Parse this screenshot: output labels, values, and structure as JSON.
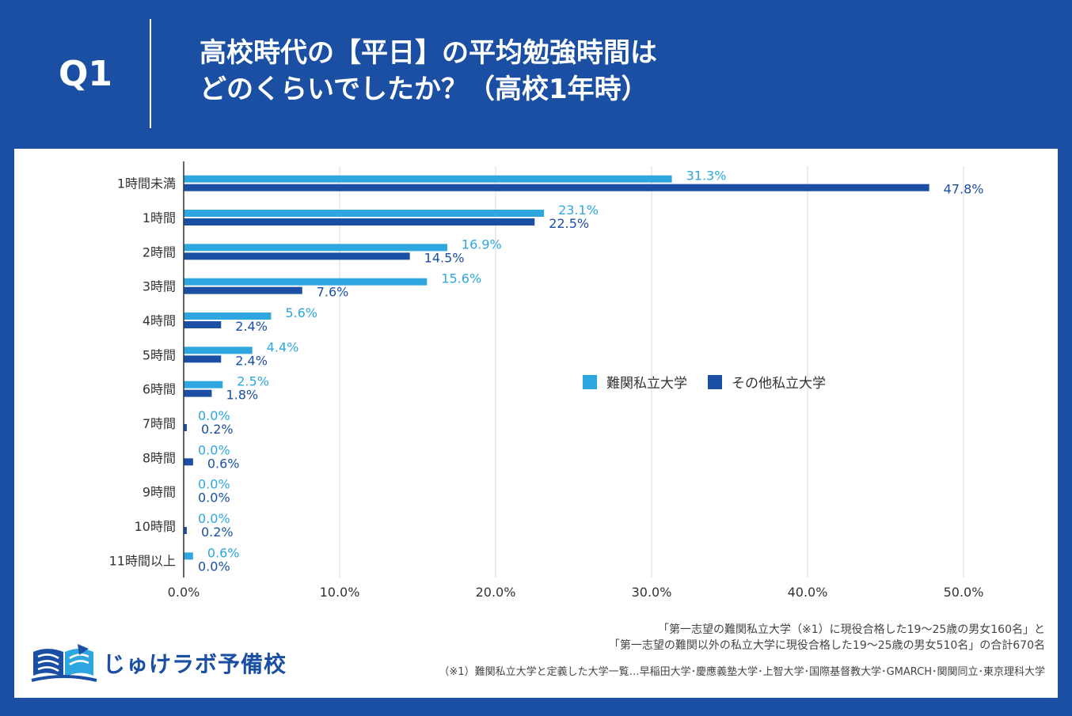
{
  "header": {
    "q_label": "Q1",
    "title_line1": "高校時代の【平日】の平均勉強時間は",
    "title_line2": "どのくらいでしたか？（高校1年時）"
  },
  "legend": {
    "series1": "難関私立大学",
    "series2": "その他私立大学"
  },
  "notes": {
    "line1": "「第一志望の難関私立大学（※1）に現役合格した19〜25歳の男女160名」と",
    "line2": "「第一志望の難関以外の私立大学に現役合格した19〜25歳の男女510名」の合計670名",
    "footnote": "（※1）難関私立大学と定義した大学一覧…早稲田大学･慶應義塾大学･上智大学･国際基督教大学･GMARCH･関関同立･東京理科大学"
  },
  "logo": {
    "text": "じゅけラボ予備校",
    "icon": "open-book-icon"
  },
  "colors": {
    "background": "#1a4fa3",
    "series1": "#2ea7e0",
    "series2": "#1a4fa3",
    "grid": "#d9d9d9"
  },
  "chart_data": {
    "type": "bar",
    "orientation": "horizontal",
    "categories": [
      "1時間未満",
      "1時間",
      "2時間",
      "3時間",
      "4時間",
      "5時間",
      "6時間",
      "7時間",
      "8時間",
      "9時間",
      "10時間",
      "11時間以上"
    ],
    "series": [
      {
        "name": "難関私立大学",
        "values": [
          31.3,
          23.1,
          16.9,
          15.6,
          5.6,
          4.4,
          2.5,
          0.0,
          0.0,
          0.0,
          0.0,
          0.6
        ]
      },
      {
        "name": "その他私立大学",
        "values": [
          47.8,
          22.5,
          14.5,
          7.6,
          2.4,
          2.4,
          1.8,
          0.2,
          0.6,
          0.0,
          0.2,
          0.0
        ]
      }
    ],
    "data_labels": [
      [
        "31.3%",
        "23.1%",
        "16.9%",
        "15.6%",
        "5.6%",
        "4.4%",
        "2.5%",
        "0.0%",
        "0.0%",
        "0.0%",
        "0.0%",
        "0.6%"
      ],
      [
        "47.8%",
        "22.5%",
        "14.5%",
        "7.6%",
        "2.4%",
        "2.4%",
        "1.8%",
        "0.2%",
        "0.6%",
        "0.0%",
        "0.2%",
        "0.0%"
      ]
    ],
    "x_ticks": [
      0,
      10,
      20,
      30,
      40,
      50
    ],
    "x_tick_labels": [
      "0.0%",
      "10.0%",
      "20.0%",
      "30.0%",
      "40.0%",
      "50.0%"
    ],
    "xlim": [
      0,
      50
    ],
    "grid": true,
    "legend_position": "right"
  }
}
